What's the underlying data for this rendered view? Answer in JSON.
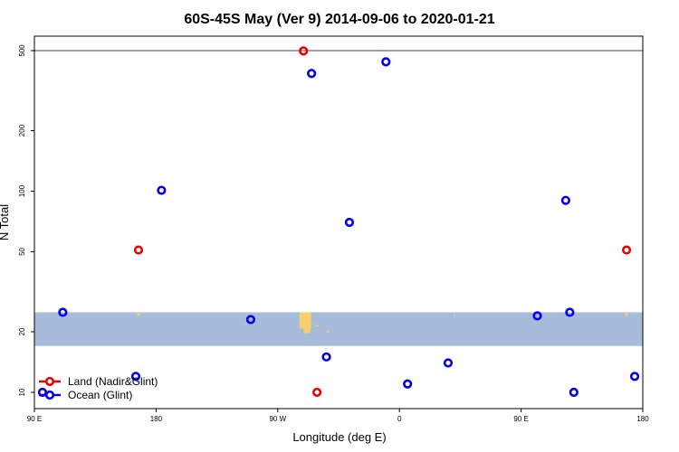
{
  "chart_data": {
    "type": "scatter",
    "title": "60S-45S May (Ver 9)   2014-09-06 to 2020-01-21",
    "xlabel": "Longitude (deg E)",
    "ylabel": "N Total",
    "x_ticks": [
      {
        "value": 90,
        "label": "90 E"
      },
      {
        "value": 180,
        "label": "180"
      },
      {
        "value": 270,
        "label": "90 W"
      },
      {
        "value": 360,
        "label": "0"
      },
      {
        "value": 450,
        "label": "90 E"
      },
      {
        "value": 540,
        "label": "180"
      }
    ],
    "y_ticks": [
      {
        "value": 10,
        "label": "10"
      },
      {
        "value": 20,
        "label": "20"
      },
      {
        "value": 50,
        "label": "50"
      },
      {
        "value": 100,
        "label": "100"
      },
      {
        "value": 200,
        "label": "200"
      },
      {
        "value": 500,
        "label": "500"
      }
    ],
    "xlim": [
      90,
      540
    ],
    "ylim": [
      8.3,
      590
    ],
    "y_scale": "log",
    "reference_line": 500,
    "map_strip": {
      "y_range": [
        17,
        25
      ],
      "ocean_color": "#a7bbda",
      "land_color": "#f5ce6e"
    },
    "legend": {
      "position": "bottom-left"
    },
    "series": [
      {
        "name": "Land (Nadir&Glint)",
        "color": "#ee0000",
        "points": [
          [
            167,
            51
          ],
          [
            289,
            498
          ],
          [
            299,
            10
          ],
          [
            528,
            51
          ]
        ]
      },
      {
        "name": "Ocean (Glint)",
        "color": "#0000ee",
        "points": [
          [
            111,
            25
          ],
          [
            184,
            101
          ],
          [
            165,
            12
          ],
          [
            250,
            23
          ],
          [
            295,
            385
          ],
          [
            323,
            70
          ],
          [
            350,
            440
          ],
          [
            306,
            15
          ],
          [
            366,
            11
          ],
          [
            396,
            14
          ],
          [
            462,
            24
          ],
          [
            483,
            90
          ],
          [
            486,
            25
          ],
          [
            489,
            10
          ],
          [
            534,
            12
          ],
          [
            96,
            10
          ]
        ]
      }
    ]
  }
}
